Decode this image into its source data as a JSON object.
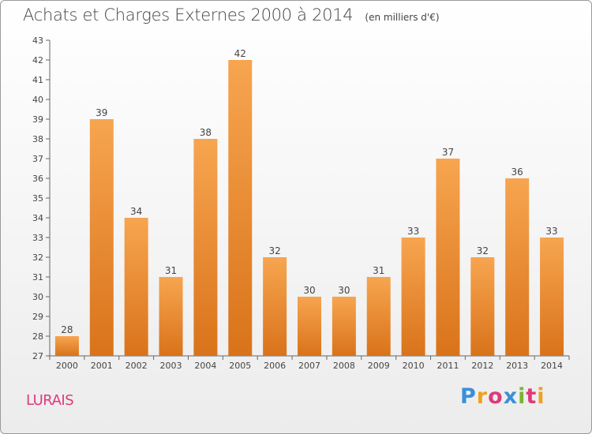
{
  "chart_data": {
    "type": "bar",
    "title": "Achats et Charges Externes 2000 à 2014",
    "subtitle": "(en milliers d'€)",
    "categories": [
      "2000",
      "2001",
      "2002",
      "2003",
      "2004",
      "2005",
      "2006",
      "2007",
      "2008",
      "2009",
      "2010",
      "2011",
      "2012",
      "2013",
      "2014"
    ],
    "values": [
      28,
      39,
      34,
      31,
      38,
      42,
      32,
      30,
      30,
      31,
      33,
      37,
      32,
      36,
      33
    ],
    "ylim": [
      27,
      43
    ],
    "yticks": [
      "27",
      "28",
      "29",
      "30",
      "31",
      "32",
      "33",
      "34",
      "35",
      "36",
      "37",
      "38",
      "39",
      "40",
      "41",
      "42",
      "43"
    ],
    "grid": false,
    "bar_color": "#f08a24",
    "bar_color_light": "#f7a550"
  },
  "footer": {
    "town": "LURAIS",
    "town_color": "#e0397a",
    "brand_letters": [
      "P",
      "r",
      "o",
      "x",
      "i",
      "t",
      "i"
    ],
    "brand_colors": [
      "#3a8fd8",
      "#f0a020",
      "#e0397a",
      "#3a8fd8",
      "#78b530",
      "#e0397a",
      "#f0a020"
    ]
  }
}
